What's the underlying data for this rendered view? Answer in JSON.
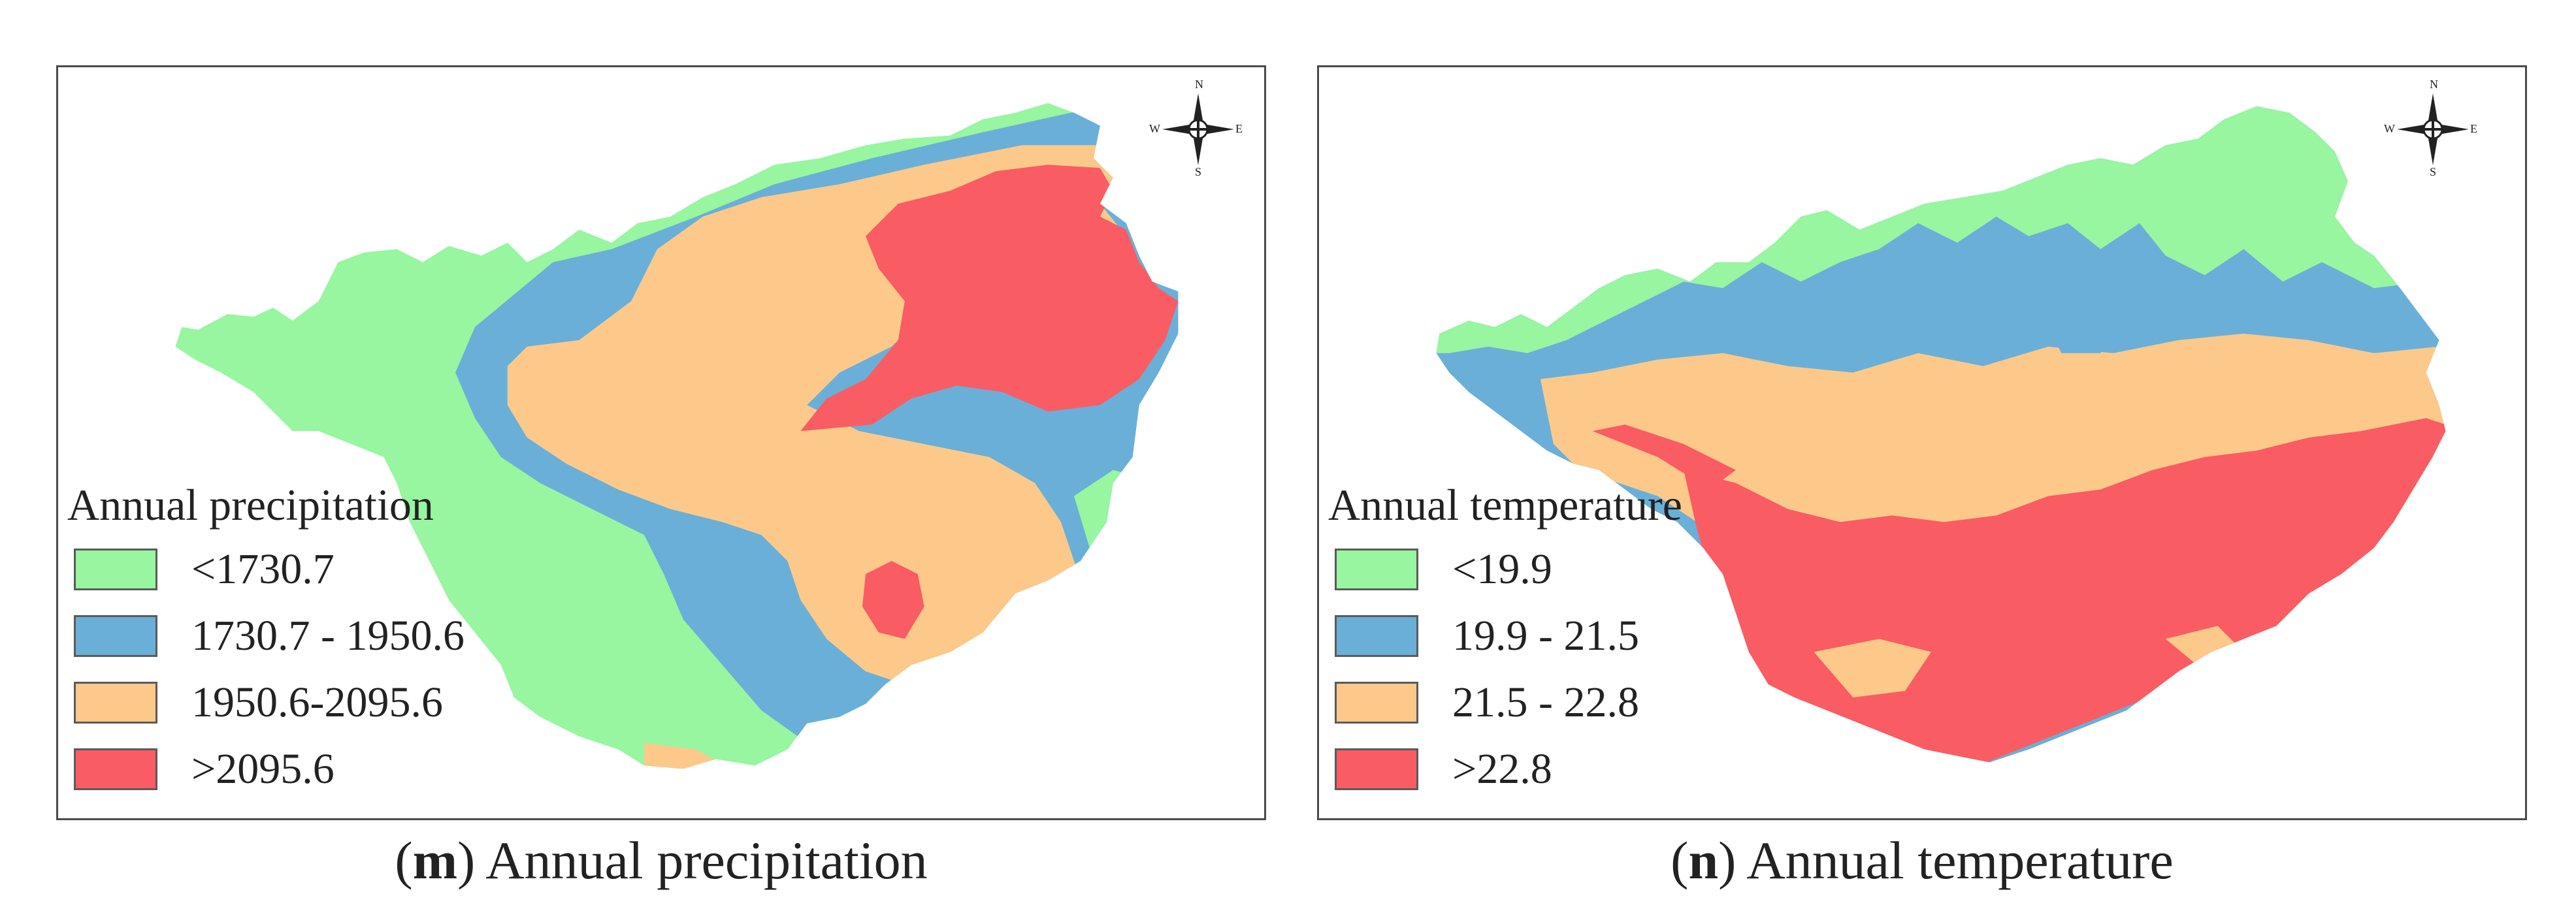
{
  "panels": [
    {
      "id": "m",
      "legend_title": "Annual precipitation",
      "classes": [
        {
          "label": "<1730.7",
          "color": "#98F5A0"
        },
        {
          "label": "1730.7 - 1950.6",
          "color": "#6AAFD8"
        },
        {
          "label": "1950.6-2095.6",
          "color": "#FCC98A"
        },
        {
          "label": ">2095.6",
          "color": "#FA5C63"
        }
      ],
      "caption": {
        "letter": "m",
        "text": "Annual precipitation"
      }
    },
    {
      "id": "n",
      "legend_title": "Annual temperature",
      "classes": [
        {
          "label": "<19.9",
          "color": "#98F5A0"
        },
        {
          "label": "19.9 - 21.5",
          "color": "#6AAFD8"
        },
        {
          "label": "21.5 - 22.8",
          "color": "#FCC98A"
        },
        {
          "label": ">22.8",
          "color": "#FA5C63"
        }
      ],
      "caption": {
        "letter": "n",
        "text": "Annual temperature"
      }
    }
  ],
  "compass": {
    "north": "N",
    "south": "S",
    "east": "E",
    "west": "W"
  }
}
